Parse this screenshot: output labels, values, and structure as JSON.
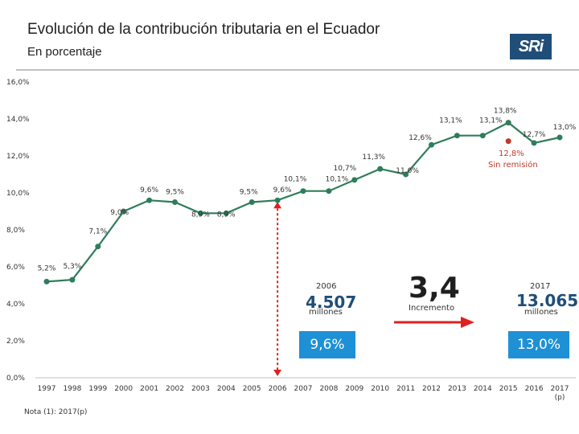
{
  "header": {
    "title": "Evolución de la contribución tributaria en el Ecuador",
    "subtitle": "En porcentaje",
    "logo_text": "SRi"
  },
  "chart_data": {
    "type": "line",
    "x": [
      "1997",
      "1998",
      "1999",
      "2000",
      "2001",
      "2002",
      "2003",
      "2004",
      "2005",
      "2006",
      "2007",
      "2008",
      "2009",
      "2010",
      "2011",
      "2012",
      "2013",
      "2014",
      "2015",
      "2016",
      "2017\n(p)"
    ],
    "series": [
      {
        "name": "",
        "values": [
          5.2,
          5.3,
          7.1,
          9.0,
          9.6,
          9.5,
          8.9,
          8.9,
          9.5,
          9.6,
          10.1,
          10.1,
          10.7,
          11.3,
          11.0,
          12.6,
          13.1,
          13.1,
          13.8,
          12.7,
          13.0
        ]
      }
    ],
    "point_labels": [
      "5,2%",
      "5,3%",
      "7,1%",
      "9,0%",
      "9,6%",
      "9,5%",
      "8,9%",
      "8,9%",
      "9,5%",
      "9,6%",
      "10,1%",
      "10,1%",
      "10,7%",
      "11,3%",
      "11,0%",
      "12,6%",
      "13,1%",
      "13,1%",
      "13,8%",
      "12,7%",
      "13,0%"
    ],
    "y_ticks": [
      "0,0%",
      "2,0%",
      "4,0%",
      "6,0%",
      "8,0%",
      "10,0%",
      "12,0%",
      "14,0%",
      "16,0%"
    ],
    "ylim": [
      0,
      16
    ],
    "extra_point": {
      "x_index": 18,
      "value": 12.8,
      "label": "12,8%",
      "text": "Sin remisión",
      "color": "#c0392b"
    },
    "marker_line_x_index": 9,
    "line_color": "#2e7d5b",
    "title": "Evolución de la contribución tributaria en el Ecuador",
    "xlabel": "",
    "ylabel": ""
  },
  "annotations": {
    "a2006": {
      "year": "2006",
      "value": "4.507",
      "unit": "millones",
      "pct": "9,6%"
    },
    "increase": {
      "value": "3,4",
      "label": "Incremento"
    },
    "a2017": {
      "year": "2017",
      "value": "13.065",
      "unit": "millones",
      "pct": "13,0%"
    }
  },
  "colors": {
    "accent_box": "#1e90d6",
    "arrow": "#e02020",
    "logo_bg": "#1f4e79"
  },
  "note": "Nota (1): 2017(p)"
}
